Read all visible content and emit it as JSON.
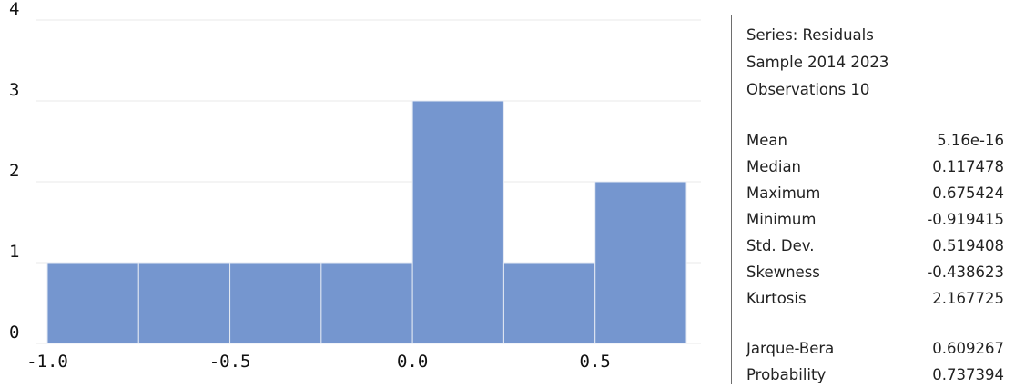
{
  "chart_data": {
    "type": "bar",
    "bins": [
      {
        "from": -1.0,
        "to": -0.75,
        "count": 1
      },
      {
        "from": -0.75,
        "to": -0.5,
        "count": 1
      },
      {
        "from": -0.5,
        "to": -0.25,
        "count": 1
      },
      {
        "from": -0.25,
        "to": 0.0,
        "count": 1
      },
      {
        "from": 0.0,
        "to": 0.25,
        "count": 3
      },
      {
        "from": 0.25,
        "to": 0.5,
        "count": 1
      },
      {
        "from": 0.5,
        "to": 0.75,
        "count": 2
      }
    ],
    "xlim": [
      -1.0,
      0.75
    ],
    "ylim": [
      0,
      4
    ],
    "x_ticks": [
      "-1.0",
      "-0.5",
      "0.0",
      "0.5"
    ],
    "y_ticks": [
      "0",
      "1",
      "2",
      "3",
      "4"
    ],
    "grid": true,
    "bar_color": "#7596cf",
    "title": "",
    "xlabel": "",
    "ylabel": ""
  },
  "stats": {
    "header": [
      "Series: Residuals",
      "Sample 2014 2023",
      "Observations 10"
    ],
    "rows": [
      {
        "label": "Mean",
        "value": "5.16e-16"
      },
      {
        "label": "Median",
        "value": "0.117478"
      },
      {
        "label": "Maximum",
        "value": "0.675424"
      },
      {
        "label": "Minimum",
        "value": "-0.919415"
      },
      {
        "label": "Std. Dev.",
        "value": "0.519408"
      },
      {
        "label": "Skewness",
        "value": "-0.438623"
      },
      {
        "label": "Kurtosis",
        "value": "2.167725"
      }
    ],
    "tests": [
      {
        "label": "Jarque-Bera",
        "value": "0.609267"
      },
      {
        "label": "Probability",
        "value": "0.737394"
      }
    ]
  }
}
